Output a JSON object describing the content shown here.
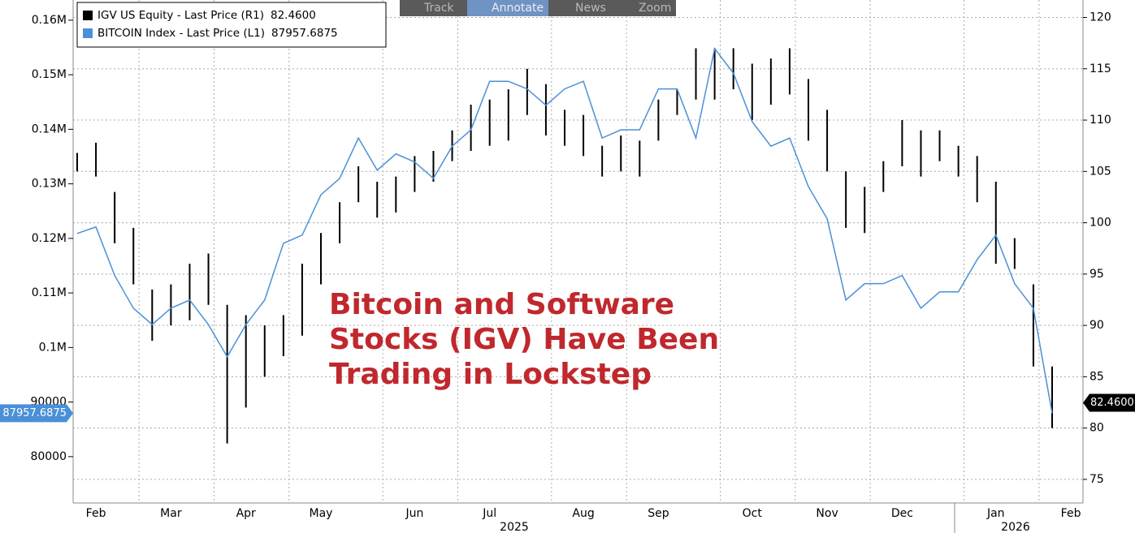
{
  "toolbar": [
    "Track",
    "Annotate",
    "News",
    "Zoom"
  ],
  "chart_data": {
    "type": "line-ohlc",
    "annotation": [
      "Bitcoin and Software",
      "Stocks (IGV) Have Been",
      "Trading in Lockstep"
    ],
    "categories": [
      null,
      "Feb",
      null,
      null,
      null,
      "Mar",
      null,
      null,
      null,
      "Apr",
      null,
      null,
      null,
      "May",
      null,
      null,
      null,
      null,
      "Jun",
      null,
      null,
      null,
      "Jul",
      null,
      null,
      null,
      null,
      "Aug",
      null,
      null,
      null,
      "Sep",
      null,
      null,
      null,
      null,
      "Oct",
      null,
      null,
      null,
      "Nov",
      null,
      null,
      null,
      "Dec",
      null,
      null,
      null,
      null,
      "Jan",
      null,
      null,
      null,
      "Feb"
    ],
    "years": [
      "2025",
      "2026"
    ],
    "ylim": [
      71500,
      163700
    ],
    "yticks": [
      {
        "value": 160000,
        "label": "0.16M"
      },
      {
        "value": 150000,
        "label": "0.15M"
      },
      {
        "value": 140000,
        "label": "0.14M"
      },
      {
        "value": 130000,
        "label": "0.13M"
      },
      {
        "value": 120000,
        "label": "0.12M"
      },
      {
        "value": 110000,
        "label": "0.11M"
      },
      {
        "value": 100000,
        "label": "0.1M"
      },
      90000,
      80000
    ],
    "y2lim": [
      72.7,
      121.7
    ],
    "y2ticks": [
      120,
      115,
      110,
      105,
      100,
      95,
      90,
      85,
      80,
      75
    ],
    "grid": true,
    "series": [
      {
        "name": "IGV US Equity - Last Price (R1)",
        "color": "#000000",
        "axis": "y2",
        "kind": "hilo",
        "last": {
          "value": 82.46,
          "label": "82.4600"
        },
        "high": [
          106.8,
          107.8,
          103,
          99.5,
          93.5,
          94,
          96,
          97,
          92,
          91,
          90,
          91,
          96,
          99,
          102,
          105.5,
          104,
          104.5,
          106.5,
          107,
          109,
          111.5,
          112,
          113,
          115,
          113.5,
          111,
          110.5,
          107.5,
          108.5,
          108,
          112,
          113,
          117,
          117,
          117,
          115.5,
          116,
          117,
          114,
          111,
          105,
          103.5,
          106,
          110,
          109,
          109,
          107.5,
          106.5,
          104,
          98.5,
          94,
          86,
          null
        ],
        "low": [
          105,
          104.5,
          98,
          94,
          88.5,
          90,
          90.5,
          92,
          78.5,
          82,
          85,
          87,
          89,
          94,
          98,
          102,
          100.5,
          101,
          103,
          104,
          106,
          107,
          107.5,
          108,
          110.5,
          108.5,
          107.5,
          106.5,
          104.5,
          105,
          104.5,
          108,
          110.5,
          112,
          112,
          113,
          110,
          111.5,
          112.5,
          108,
          105,
          99.5,
          99,
          103,
          105.5,
          104.5,
          106,
          104.5,
          102,
          96,
          95.5,
          86,
          80,
          null
        ]
      },
      {
        "name": "BITCOIN Index - Last Price (L1)",
        "color": "#4a90d9",
        "axis": "y",
        "kind": "line",
        "last": 87957.6875,
        "values": [
          120900,
          122100,
          113200,
          107200,
          104200,
          107200,
          108700,
          104200,
          98300,
          104200,
          108700,
          119100,
          120600,
          128000,
          131000,
          138400,
          132500,
          135500,
          134000,
          131000,
          136900,
          139900,
          148800,
          148800,
          147400,
          144400,
          147400,
          148800,
          138400,
          139900,
          139900,
          147400,
          147400,
          138400,
          154800,
          150300,
          141400,
          136900,
          138400,
          129500,
          123600,
          108700,
          111700,
          111700,
          113200,
          107200,
          110200,
          110200,
          116100,
          120600,
          111700,
          107200,
          87957.6875,
          null
        ]
      }
    ]
  }
}
